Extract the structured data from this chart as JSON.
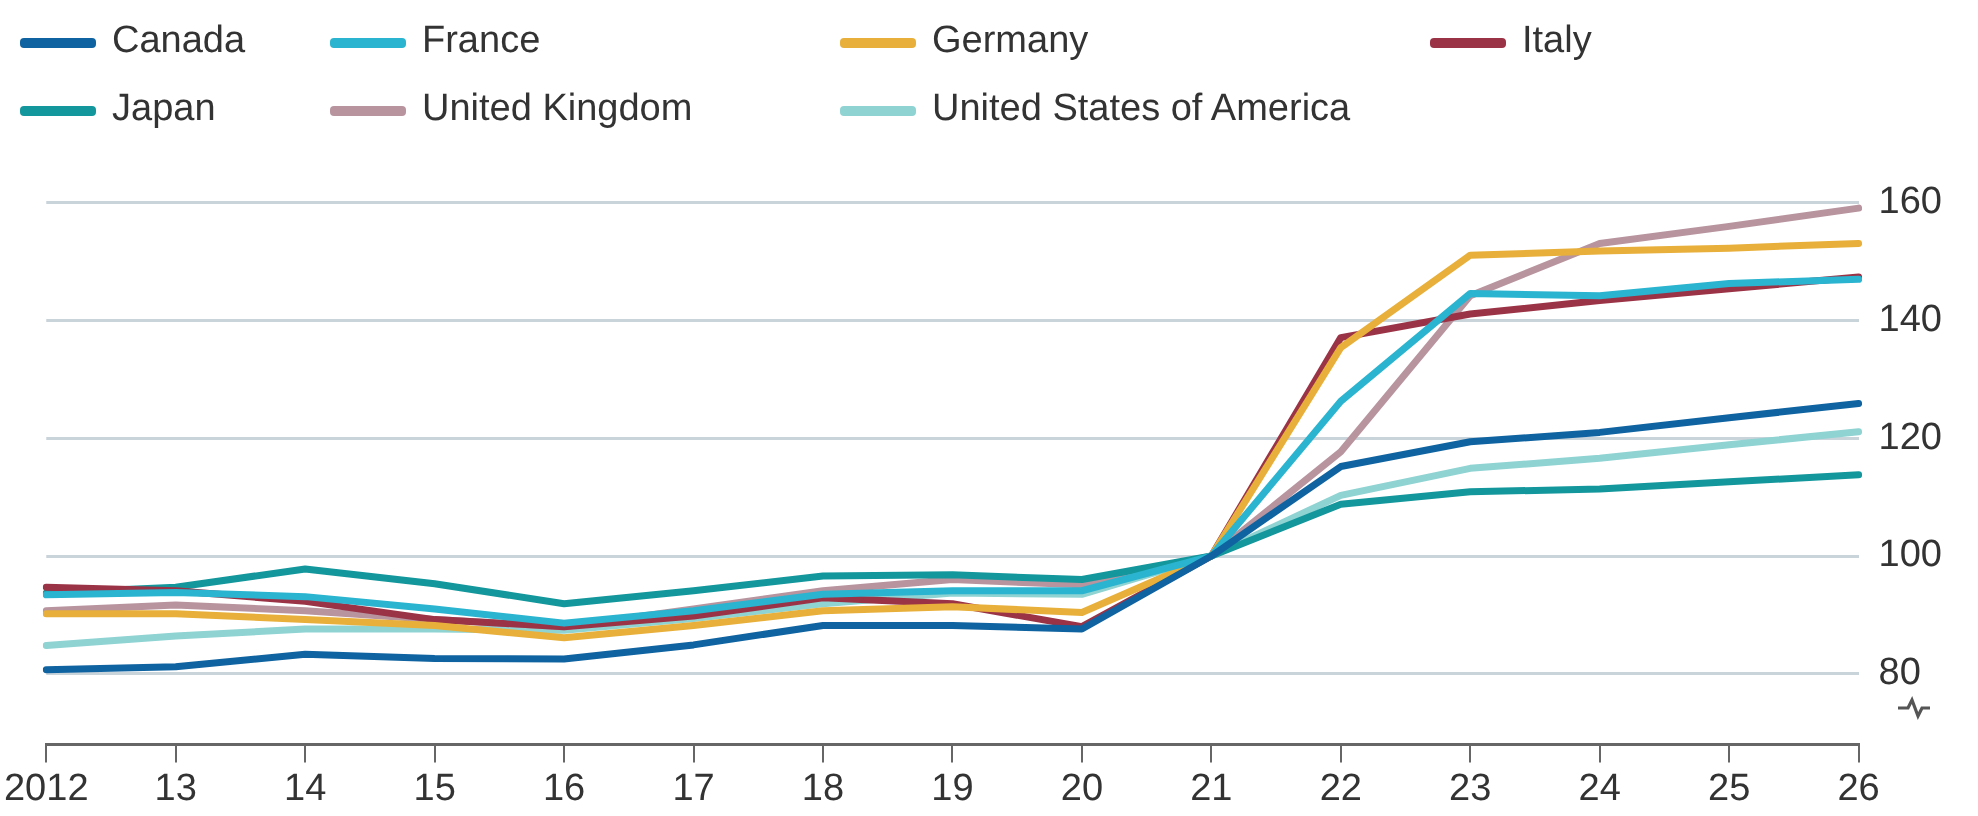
{
  "chart_data": {
    "type": "line",
    "categories": [
      "2012",
      "13",
      "14",
      "15",
      "16",
      "17",
      "18",
      "19",
      "20",
      "21",
      "22",
      "23",
      "24",
      "25",
      "26"
    ],
    "series": [
      {
        "name": "Canada",
        "color": "#0f63a0",
        "values": [
          80.7,
          81.2,
          83.3,
          82.6,
          82.5,
          84.9,
          88.2,
          88.2,
          87.6,
          100,
          115.2,
          119.4,
          121,
          123.5,
          125.9
        ]
      },
      {
        "name": "France",
        "color": "#2ab4cf",
        "values": [
          93.4,
          93.8,
          93.1,
          91,
          88.6,
          90.7,
          93.5,
          94.1,
          94.1,
          100,
          126.3,
          144.6,
          144.2,
          146.3,
          147
        ]
      },
      {
        "name": "Germany",
        "color": "#e8b03a",
        "values": [
          90.2,
          90.2,
          89.2,
          88.2,
          86.1,
          88.2,
          90.7,
          91.4,
          90.4,
          100,
          135.4,
          151.1,
          151.8,
          152.3,
          153.1
        ]
      },
      {
        "name": "Italy",
        "color": "#9b3346",
        "values": [
          94.7,
          94.1,
          92.3,
          89.2,
          88,
          89.8,
          92.9,
          91.9,
          88,
          100,
          137.1,
          141.1,
          143.4,
          145.4,
          147.4
        ]
      },
      {
        "name": "Japan",
        "color": "#13979c",
        "values": [
          93.7,
          94.7,
          97.8,
          95.3,
          91.9,
          94.1,
          96.6,
          96.8,
          96,
          100,
          108.8,
          110.9,
          111.4,
          112.6,
          113.8
        ]
      },
      {
        "name": "United Kingdom",
        "color": "#b8949f",
        "values": [
          90.7,
          91.7,
          90.7,
          89.2,
          88,
          91,
          94.1,
          96,
          95.1,
          100,
          117.7,
          144.2,
          153.1,
          156,
          159.1
        ]
      },
      {
        "name": "United States of America",
        "color": "#8fd3d3",
        "values": [
          84.8,
          86.4,
          87.6,
          87.6,
          87.4,
          89.4,
          91.9,
          93.7,
          93.5,
          100,
          110.3,
          114.9,
          116.6,
          118.9,
          121.1
        ]
      }
    ],
    "ylim": [
      68,
      160
    ],
    "yticks": [
      80,
      100,
      120,
      140,
      160
    ],
    "grid": "y",
    "legend": "top",
    "marker": "none"
  }
}
